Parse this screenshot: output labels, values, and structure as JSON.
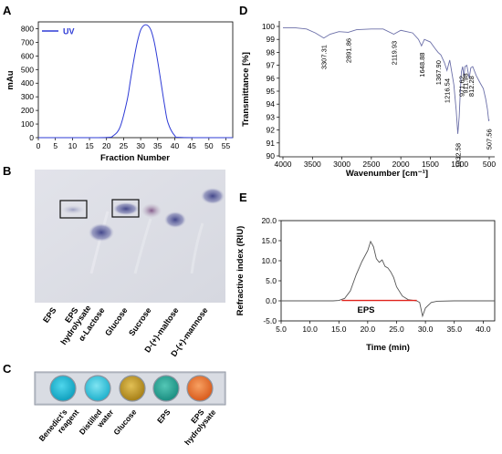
{
  "panels": {
    "A": {
      "label": "A"
    },
    "B": {
      "label": "B"
    },
    "C": {
      "label": "C"
    },
    "D": {
      "label": "D"
    },
    "E": {
      "label": "E"
    }
  },
  "colors": {
    "uv": "#2e3bd6",
    "ftir": "#6b6fa8",
    "ri": "#555555",
    "baseline": "#e0221b",
    "benedict": "#18b6d1",
    "glucose": "#c8a02a",
    "eps": "#24a89a",
    "hydrolysate": "#e8742d"
  },
  "chart_data": [
    {
      "panel": "A",
      "type": "line",
      "xlabel": "Fraction Number",
      "ylabel": "mAu",
      "xlim": [
        0,
        57
      ],
      "ylim": [
        0,
        850
      ],
      "xticks": [
        0,
        5,
        10,
        15,
        20,
        25,
        30,
        35,
        40,
        45,
        50,
        55
      ],
      "yticks": [
        0,
        100,
        200,
        300,
        400,
        500,
        600,
        700,
        800
      ],
      "series": [
        {
          "name": "UV",
          "x": [
            0,
            10,
            20,
            22,
            24,
            26,
            27,
            28,
            29,
            30,
            31,
            32,
            33,
            34,
            35,
            36,
            37,
            38,
            40,
            42,
            57
          ],
          "y": [
            0,
            0,
            2,
            15,
            80,
            270,
            420,
            570,
            700,
            790,
            825,
            825,
            790,
            700,
            560,
            400,
            240,
            110,
            15,
            2,
            0
          ]
        }
      ],
      "grid": false,
      "legend": "top-left"
    },
    {
      "panel": "D",
      "type": "line",
      "xlabel": "Wavenumber [cm⁻¹]",
      "ylabel": "Transmittance [%]",
      "xlim": [
        4000,
        500
      ],
      "ylim": [
        90,
        100
      ],
      "xticks": [
        4000,
        3500,
        3000,
        2500,
        2000,
        1500,
        1000,
        500
      ],
      "yticks": [
        90,
        91,
        92,
        93,
        94,
        95,
        96,
        97,
        98,
        99,
        100
      ],
      "peak_labels": [
        "3307.31",
        "2891.86",
        "2119.93",
        "1648.88",
        "1367.90",
        "1216.54",
        "1032.58",
        "971.62",
        "911.98",
        "812.28",
        "507.56"
      ],
      "series": [
        {
          "x": [
            4000,
            3800,
            3600,
            3450,
            3307,
            3200,
            3050,
            2892,
            2750,
            2500,
            2300,
            2120,
            2000,
            1800,
            1700,
            1649,
            1600,
            1500,
            1420,
            1368,
            1320,
            1260,
            1217,
            1170,
            1100,
            1060,
            1033,
            1010,
            990,
            972,
            950,
            930,
            912,
            880,
            840,
            812,
            780,
            720,
            650,
            600,
            560,
            530,
            508,
            500
          ],
          "y": [
            99.9,
            99.9,
            99.8,
            99.5,
            99.1,
            99.4,
            99.6,
            99.55,
            99.75,
            99.8,
            99.8,
            99.4,
            99.7,
            99.5,
            99.0,
            98.5,
            99.0,
            98.8,
            98.3,
            98.0,
            97.8,
            97.2,
            96.6,
            97.4,
            95.5,
            93.5,
            91.7,
            93.0,
            95.0,
            96.5,
            96.9,
            96.1,
            96.9,
            97.0,
            96.0,
            96.8,
            96.9,
            96.2,
            95.6,
            95.2,
            94.4,
            93.6,
            92.7,
            92.8
          ]
        }
      ],
      "grid": false
    },
    {
      "panel": "E",
      "type": "line",
      "xlabel": "Time (min)",
      "ylabel": "Refractive index (RIU)",
      "xlim": [
        5,
        42
      ],
      "ylim": [
        -5,
        20
      ],
      "xticks": [
        "5.0",
        "10.0",
        "15.0",
        "20.0",
        "25.0",
        "30.0",
        "35.0",
        "40.0"
      ],
      "yticks": [
        "-5.0",
        "0.0",
        "5.0",
        "10.0",
        "15.0",
        "20.0"
      ],
      "annotation": "EPS",
      "series": [
        {
          "x": [
            5,
            14,
            15,
            16,
            17,
            18,
            19,
            20,
            20.5,
            21,
            21.5,
            22,
            22.5,
            23,
            23.5,
            24,
            24.5,
            25,
            26,
            27,
            28,
            28.5,
            29,
            29.5,
            30,
            31,
            32,
            35,
            42
          ],
          "y": [
            0,
            0,
            0.1,
            0.6,
            2.5,
            6.5,
            9.8,
            12.5,
            14.8,
            13.5,
            10.5,
            9.6,
            10.2,
            8.6,
            8.2,
            7.2,
            5.8,
            3.5,
            1.2,
            0.3,
            0.1,
            0,
            -0.4,
            -3.8,
            -1.8,
            -0.4,
            -0.1,
            0,
            0
          ]
        },
        {
          "x": [
            15.5,
            28.5
          ],
          "y": [
            0.1,
            0.1
          ]
        }
      ],
      "grid": false
    }
  ],
  "panelB": {
    "lane_labels": [
      "EPS",
      "EPS hydrolysate",
      "α-Lactose",
      "Glucose",
      "Sucrose",
      "D-(+)-maltose",
      "D-(+)-mannose"
    ]
  },
  "panelC": {
    "well_labels": [
      {
        "line1": "Benedict's",
        "line2": "reagent"
      },
      {
        "line1": "Distilled",
        "line2": "water"
      },
      {
        "line1": "Glucose",
        "line2": ""
      },
      {
        "line1": "EPS",
        "line2": ""
      },
      {
        "line1": "EPS",
        "line2": "hydrolysate"
      }
    ]
  }
}
